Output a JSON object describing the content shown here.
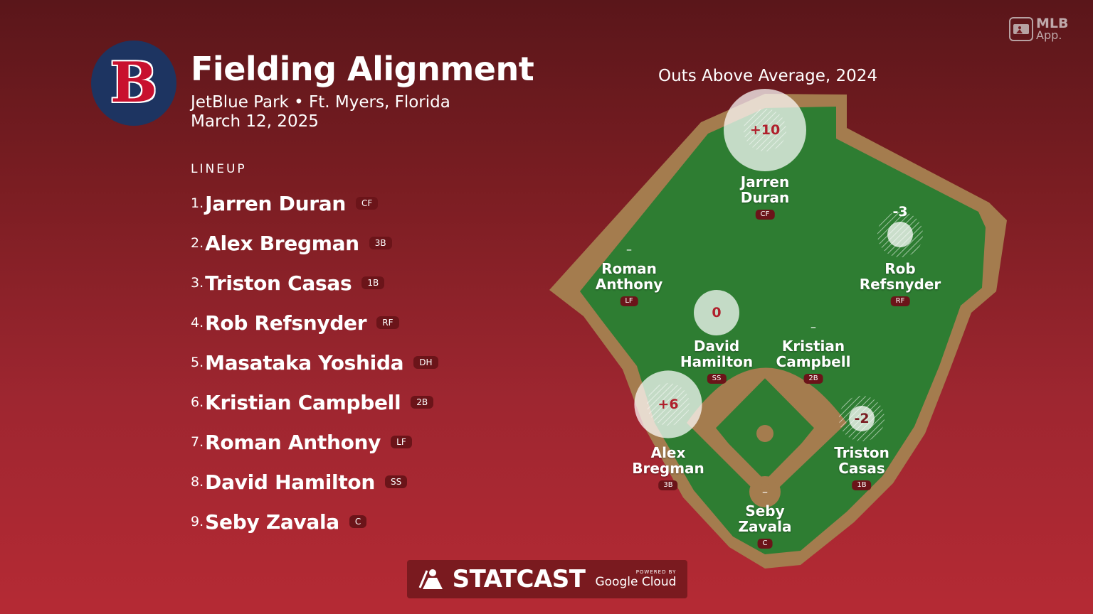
{
  "header": {
    "team_logo_letter": "B",
    "title": "Fielding Alignment",
    "venue": "JetBlue Park • Ft. Myers, Florida",
    "date": "March 12, 2025"
  },
  "brand": {
    "app_line1": "MLB",
    "app_line2": "App."
  },
  "lineup": {
    "label": "LINEUP",
    "players": [
      {
        "num": "1.",
        "name": "Jarren Duran",
        "pos": "CF"
      },
      {
        "num": "2.",
        "name": "Alex Bregman",
        "pos": "3B"
      },
      {
        "num": "3.",
        "name": "Triston Casas",
        "pos": "1B"
      },
      {
        "num": "4.",
        "name": "Rob Refsnyder",
        "pos": "RF"
      },
      {
        "num": "5.",
        "name": "Masataka Yoshida",
        "pos": "DH"
      },
      {
        "num": "6.",
        "name": "Kristian Campbell",
        "pos": "2B"
      },
      {
        "num": "7.",
        "name": "Roman Anthony",
        "pos": "LF"
      },
      {
        "num": "8.",
        "name": "David Hamilton",
        "pos": "SS"
      },
      {
        "num": "9.",
        "name": "Seby Zavala",
        "pos": "C"
      }
    ]
  },
  "field": {
    "title": "Outs Above Average, 2024",
    "positions": [
      {
        "name": "Jarren\nDuran",
        "pos": "CF",
        "oaa": "+10",
        "oaa_value": 10
      },
      {
        "name": "Rob\nRefsnyder",
        "pos": "RF",
        "oaa": "-3",
        "oaa_value": -3
      },
      {
        "name": "Roman\nAnthony",
        "pos": "LF",
        "oaa": "–",
        "oaa_value": null
      },
      {
        "name": "David\nHamilton",
        "pos": "SS",
        "oaa": "0",
        "oaa_value": 0
      },
      {
        "name": "Kristian\nCampbell",
        "pos": "2B",
        "oaa": "–",
        "oaa_value": null
      },
      {
        "name": "Alex\nBregman",
        "pos": "3B",
        "oaa": "+6",
        "oaa_value": 6
      },
      {
        "name": "Triston\nCasas",
        "pos": "1B",
        "oaa": "-2",
        "oaa_value": -2
      },
      {
        "name": "Seby\nZavala",
        "pos": "C",
        "oaa": "–",
        "oaa_value": null
      }
    ]
  },
  "footer": {
    "statcast": "STATCAST",
    "powered_by": "POWERED BY",
    "google_cloud": "Google Cloud"
  },
  "colors": {
    "grass": "#2e7d32",
    "dirt": "#a47c4e",
    "badge": "#6b1419",
    "oaa_text": "#b0202c"
  }
}
